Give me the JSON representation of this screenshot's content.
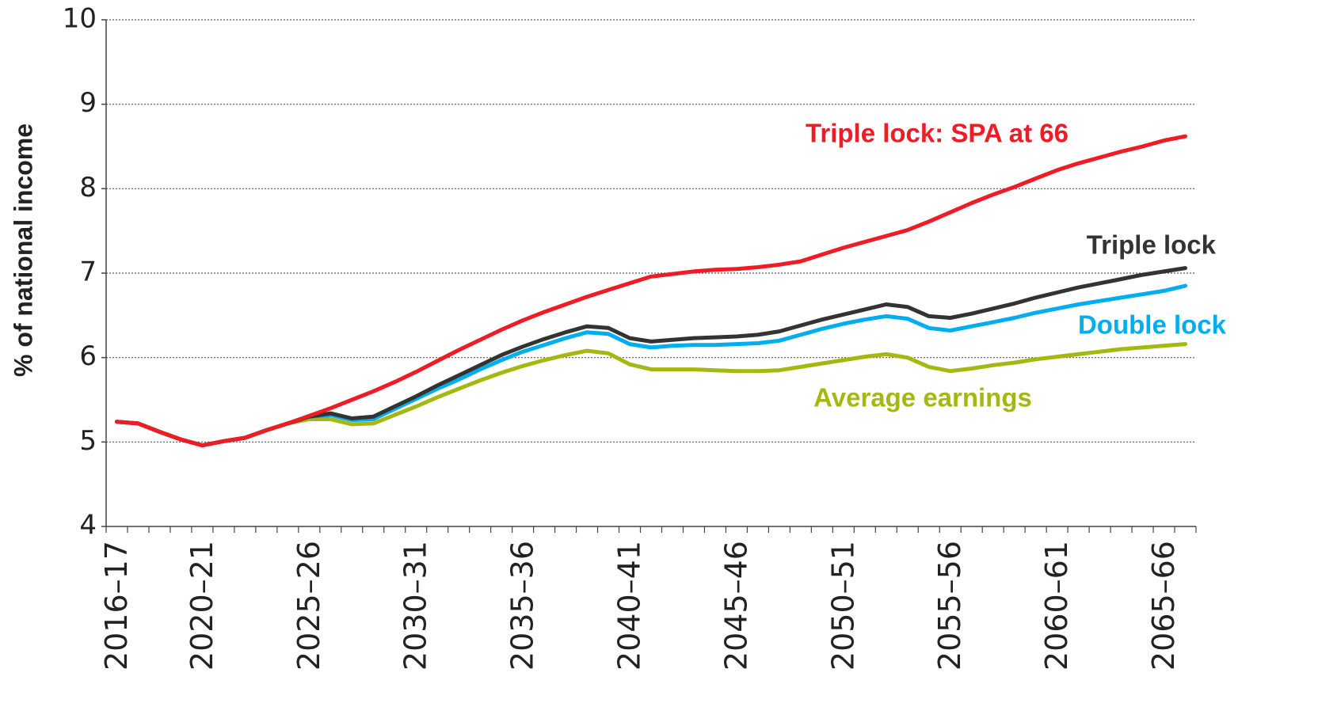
{
  "chart_data": {
    "type": "line",
    "y_label": "% of national income",
    "categories": [
      "2016–17",
      null,
      null,
      null,
      "2020–21",
      null,
      null,
      null,
      null,
      "2025–26",
      null,
      null,
      null,
      null,
      "2030–31",
      null,
      null,
      null,
      null,
      "2035–36",
      null,
      null,
      null,
      null,
      "2040–41",
      null,
      null,
      null,
      null,
      "2045–46",
      null,
      null,
      null,
      null,
      "2050–51",
      null,
      null,
      null,
      null,
      "2055–56",
      null,
      null,
      null,
      null,
      "2060–61",
      null,
      null,
      null,
      null,
      "2065–66",
      null
    ],
    "series": [
      {
        "name": "Average earnings",
        "color": "#a5b812",
        "values": [
          5.24,
          5.22,
          5.12,
          5.03,
          4.96,
          5.01,
          5.05,
          5.14,
          5.22,
          5.27,
          5.27,
          5.21,
          5.22,
          5.32,
          5.42,
          5.53,
          5.63,
          5.73,
          5.82,
          5.9,
          5.97,
          6.03,
          6.08,
          6.05,
          5.92,
          5.86,
          5.86,
          5.86,
          5.85,
          5.84,
          5.84,
          5.85,
          5.89,
          5.93,
          5.97,
          6.01,
          6.04,
          6.0,
          5.89,
          5.84,
          5.87,
          5.91,
          5.94,
          5.98,
          6.01,
          6.04,
          6.07,
          6.1,
          6.12,
          6.14,
          6.16
        ]
      },
      {
        "name": "Double lock",
        "color": "#00aeef",
        "values": [
          5.24,
          5.22,
          5.12,
          5.03,
          4.96,
          5.01,
          5.05,
          5.14,
          5.22,
          5.3,
          5.32,
          5.26,
          5.27,
          5.39,
          5.51,
          5.63,
          5.74,
          5.86,
          5.97,
          6.07,
          6.15,
          6.23,
          6.3,
          6.28,
          6.16,
          6.12,
          6.14,
          6.15,
          6.15,
          6.16,
          6.17,
          6.2,
          6.27,
          6.34,
          6.4,
          6.45,
          6.49,
          6.46,
          6.35,
          6.32,
          6.37,
          6.42,
          6.47,
          6.53,
          6.58,
          6.63,
          6.67,
          6.71,
          6.75,
          6.79,
          6.85
        ]
      },
      {
        "name": "Triple lock",
        "color": "#333333",
        "values": [
          5.24,
          5.22,
          5.12,
          5.03,
          4.96,
          5.01,
          5.05,
          5.14,
          5.22,
          5.3,
          5.34,
          5.28,
          5.3,
          5.42,
          5.54,
          5.67,
          5.79,
          5.91,
          6.03,
          6.13,
          6.22,
          6.3,
          6.37,
          6.35,
          6.23,
          6.19,
          6.21,
          6.23,
          6.24,
          6.25,
          6.27,
          6.31,
          6.38,
          6.45,
          6.51,
          6.57,
          6.63,
          6.6,
          6.49,
          6.47,
          6.52,
          6.58,
          6.64,
          6.71,
          6.77,
          6.83,
          6.88,
          6.93,
          6.98,
          7.02,
          7.06
        ]
      },
      {
        "name": "Triple lock: SPA at 66",
        "color": "#ee1c25",
        "values": [
          5.24,
          5.22,
          5.12,
          5.03,
          4.96,
          5.01,
          5.05,
          5.14,
          5.22,
          5.31,
          5.4,
          5.5,
          5.6,
          5.71,
          5.83,
          5.96,
          6.09,
          6.21,
          6.33,
          6.44,
          6.54,
          6.63,
          6.72,
          6.8,
          6.88,
          6.96,
          6.99,
          7.02,
          7.04,
          7.05,
          7.07,
          7.1,
          7.14,
          7.22,
          7.3,
          7.37,
          7.44,
          7.51,
          7.61,
          7.72,
          7.83,
          7.93,
          8.02,
          8.12,
          8.22,
          8.3,
          8.37,
          8.44,
          8.5,
          8.57,
          8.62
        ]
      }
    ],
    "ylim": [
      4,
      10
    ],
    "yticks": [
      4,
      5,
      6,
      7,
      8,
      9,
      10
    ],
    "grid": true
  }
}
